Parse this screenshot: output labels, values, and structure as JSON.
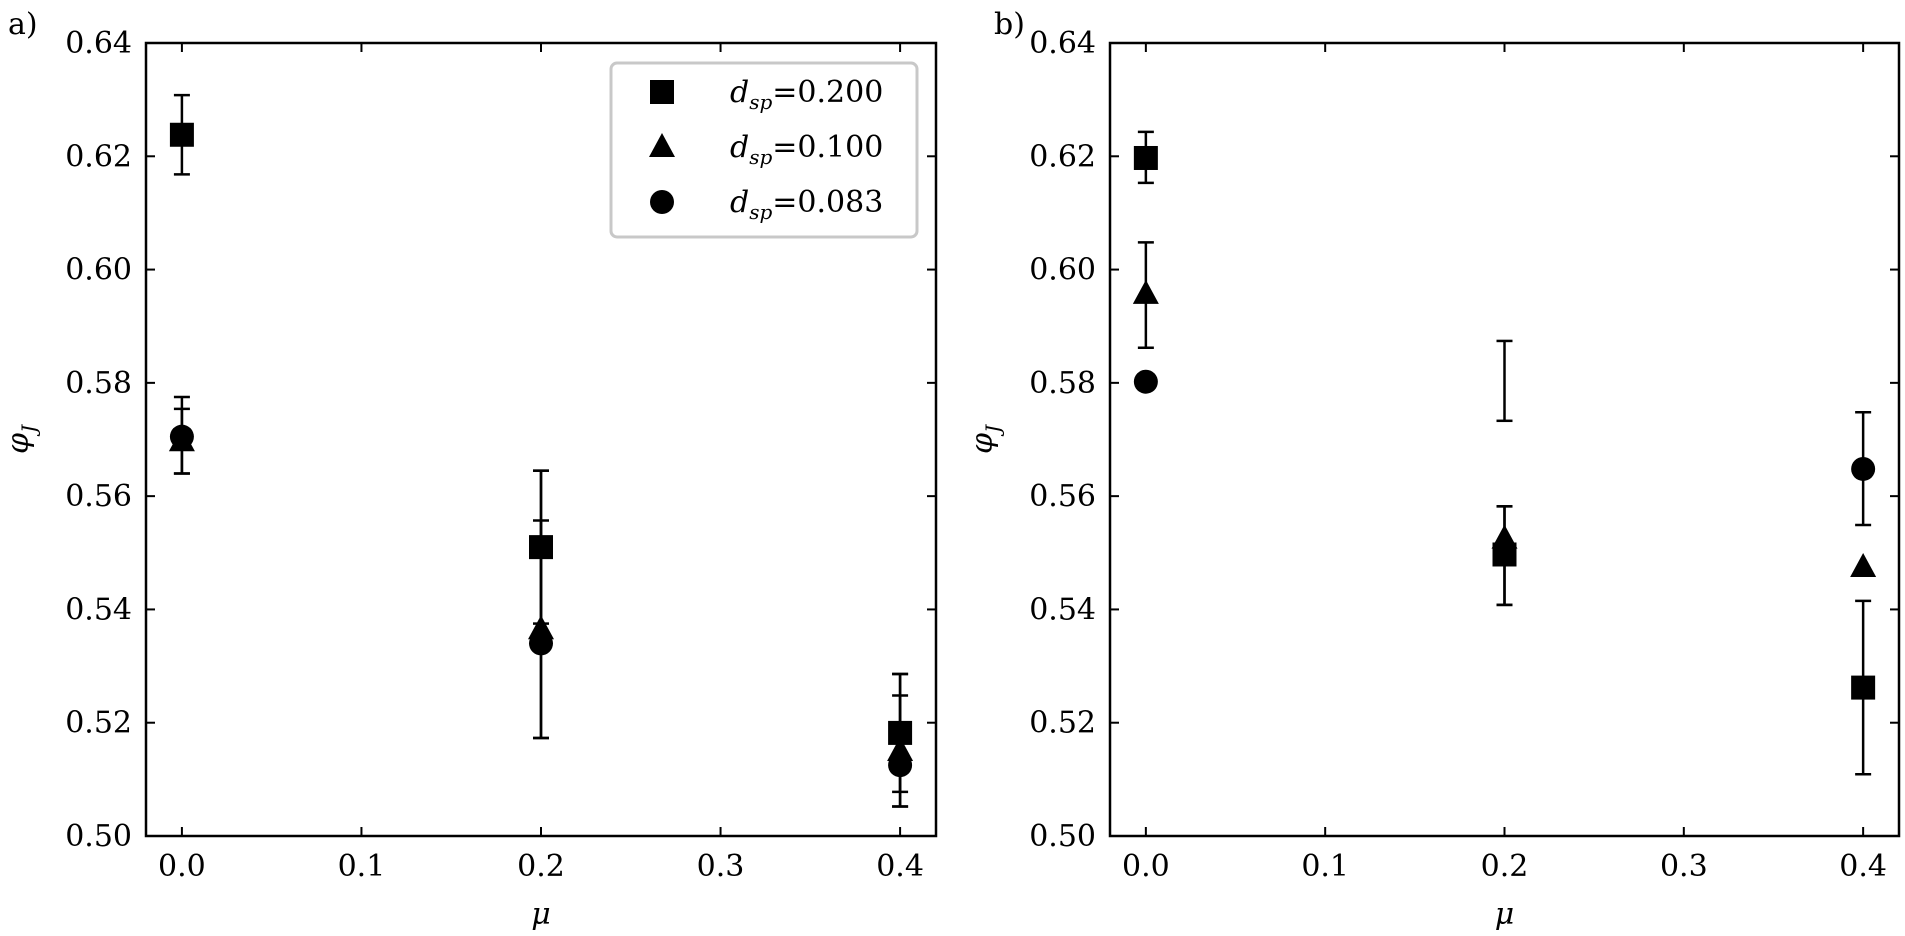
{
  "chart_data": [
    {
      "type": "scatter",
      "panel_label": "a)",
      "xlabel": "μ",
      "ylabel": "φ_J",
      "xlim": [
        -0.02,
        0.42
      ],
      "ylim": [
        0.5,
        0.64
      ],
      "xticks": [
        "0.0",
        "0.1",
        "0.2",
        "0.3",
        "0.4"
      ],
      "yticks": [
        "0.50",
        "0.52",
        "0.54",
        "0.56",
        "0.58",
        "0.60",
        "0.62",
        "0.64"
      ],
      "grid": false,
      "legend_position": "top-right",
      "error_bars": true,
      "series": [
        {
          "name": "d_sp=0.200",
          "label_main": "d",
          "label_sub": "sp",
          "label_value": "=0.200",
          "marker": "square",
          "x": [
            0.0,
            0.2,
            0.4
          ],
          "y": [
            0.6238,
            0.551,
            0.5182
          ],
          "yerr_low": [
            0.6168,
            0.5375,
            0.5078
          ],
          "yerr_high": [
            0.6308,
            0.5645,
            0.5286
          ]
        },
        {
          "name": "d_sp=0.100",
          "label_main": "d",
          "label_sub": "sp",
          "label_value": "=0.100",
          "marker": "triangle",
          "x": [
            0.0,
            0.2,
            0.4
          ],
          "y": [
            0.5697,
            0.5365,
            0.515
          ],
          "yerr_low": [
            0.564,
            0.5173,
            0.5052
          ],
          "yerr_high": [
            0.5754,
            0.5557,
            0.5248
          ]
        },
        {
          "name": "d_sp=0.083",
          "label_main": "d",
          "label_sub": "sp",
          "label_value": "=0.083",
          "marker": "circle",
          "x": [
            0.0,
            0.2,
            0.4
          ],
          "y": [
            0.5705,
            0.534,
            0.5125
          ],
          "yerr_low": [
            0.564,
            0.5173,
            0.5052
          ],
          "yerr_high": [
            0.5775,
            0.5645,
            0.5286
          ]
        }
      ]
    },
    {
      "type": "scatter",
      "panel_label": "b)",
      "xlabel": "μ",
      "ylabel": "φ_J",
      "xlim": [
        -0.02,
        0.42
      ],
      "ylim": [
        0.5,
        0.64
      ],
      "xticks": [
        "0.0",
        "0.1",
        "0.2",
        "0.3",
        "0.4"
      ],
      "yticks": [
        "0.50",
        "0.52",
        "0.54",
        "0.56",
        "0.58",
        "0.60",
        "0.62",
        "0.64"
      ],
      "grid": false,
      "error_bars": true,
      "series": [
        {
          "name": "d_sp=0.200",
          "marker": "square",
          "x": [
            0.0,
            0.2,
            0.4
          ],
          "y": [
            0.6197,
            0.5497,
            0.5262
          ],
          "yerr_low": [
            0.6153,
            0.5408,
            0.5109
          ],
          "yerr_high": [
            0.6243,
            0.5582,
            0.5415
          ]
        },
        {
          "name": "d_sp=0.100",
          "marker": "triangle",
          "x": [
            0.0,
            0.2,
            0.4
          ],
          "y": [
            0.5957,
            0.5525,
            0.5475
          ],
          "yerr_low": [
            0.5862,
            0.5408,
            null
          ],
          "yerr_high": [
            0.6048,
            0.5582,
            null
          ]
        },
        {
          "name": "d_sp=0.083",
          "marker": "circle",
          "x": [
            0.0,
            0.2,
            0.4
          ],
          "y": [
            0.5802,
            null,
            0.5648
          ],
          "yerr_low": [
            null,
            0.5733,
            0.5549
          ],
          "yerr_high": [
            null,
            0.5874,
            0.5748
          ]
        }
      ]
    }
  ]
}
